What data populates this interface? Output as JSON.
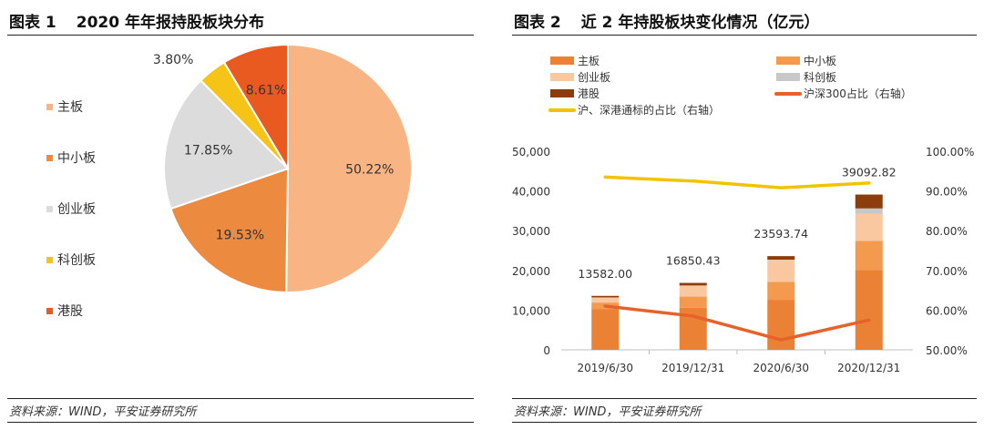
{
  "figure1": {
    "label": "图表 1",
    "title": "2020 年年报持股板块分布",
    "source": "资料来源：WIND，平安证券研究所"
  },
  "figure2": {
    "label": "图表 2",
    "title": "近 2 年持股板块变化情况（亿元）",
    "source": "资料来源：WIND，平安证券研究所"
  },
  "chart_data": [
    {
      "type": "pie",
      "title": "2020 年年报持股板块分布",
      "legend_position": "left",
      "slices": [
        {
          "name": "主板",
          "value": 50.22,
          "label": "50.22%",
          "color": "#F8B483"
        },
        {
          "name": "中小板",
          "value": 19.53,
          "label": "19.53%",
          "color": "#EC8A3F"
        },
        {
          "name": "创业板",
          "value": 17.85,
          "label": "17.85%",
          "color": "#DCDCDC"
        },
        {
          "name": "科创板",
          "value": 3.8,
          "label": "3.80%",
          "color": "#F5C417"
        },
        {
          "name": "港股",
          "value": 8.61,
          "label": "8.61%",
          "color": "#E95A20"
        }
      ]
    },
    {
      "type": "bar",
      "stacked": true,
      "title": "近 2 年持股板块变化情况（亿元）",
      "legend_position": "top",
      "categories": [
        "2019/6/30",
        "2019/12/31",
        "2020/6/30",
        "2020/12/31"
      ],
      "totals": [
        13582.0,
        16850.43,
        23593.74,
        39092.82
      ],
      "total_labels": [
        "13582.00",
        "16850.43",
        "23593.74",
        "39092.82"
      ],
      "y_left": {
        "min": 0,
        "max": 50000,
        "ticks": [
          "0",
          "10,000",
          "20,000",
          "30,000",
          "40,000",
          "50,000"
        ]
      },
      "y_right": {
        "min": 50,
        "max": 100,
        "ticks": [
          "50.00%",
          "60.00%",
          "70.00%",
          "80.00%",
          "90.00%",
          "100.00%"
        ]
      },
      "series": [
        {
          "name": "主板",
          "color": "#EA8135",
          "values": [
            10300,
            10600,
            12600,
            20100
          ]
        },
        {
          "name": "中小板",
          "color": "#F39A4F",
          "values": [
            1600,
            2800,
            4500,
            7300
          ]
        },
        {
          "name": "创业板",
          "color": "#F9C8A0",
          "values": [
            1300,
            2800,
            5500,
            6900
          ]
        },
        {
          "name": "科创板",
          "color": "#C8C8C8",
          "values": [
            0,
            0,
            100,
            1300
          ]
        },
        {
          "name": "港股",
          "color": "#8B3E0B",
          "values": [
            382,
            650,
            894,
            3493
          ]
        }
      ],
      "lines": [
        {
          "name": "沪深300占比（右轴）",
          "color": "#E7622A",
          "axis": "right",
          "values": [
            61.0,
            58.5,
            52.5,
            57.5
          ]
        },
        {
          "name": "沪、深港通标的占比（右轴）",
          "color": "#F2C300",
          "axis": "right",
          "values": [
            93.5,
            92.5,
            90.8,
            92.0
          ]
        }
      ]
    }
  ]
}
